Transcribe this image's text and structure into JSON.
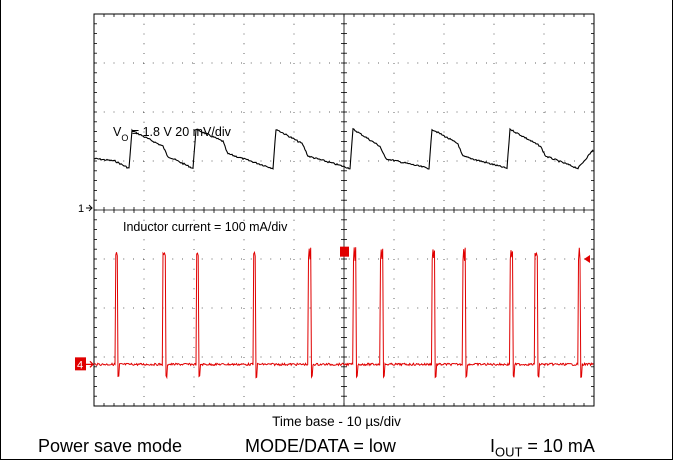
{
  "chart_data": {
    "type": "line",
    "time_per_division": "Time base - 10 µs/div",
    "grid": true,
    "grid_divisions": {
      "x": 10,
      "y": 8
    },
    "x_unit": "µs",
    "xlim": [
      0,
      100
    ],
    "channel_markers": [
      "1",
      "4"
    ],
    "series": [
      {
        "name": "VO",
        "label": "VO = 1.8 V 20 mV/div",
        "label_parts": {
          "prefix": "V",
          "subscript": "O",
          "rest": " = 1.8 V 20 mV/div"
        },
        "color": "#000000",
        "scale": "20 mV/div",
        "unit": "div",
        "ylim": [
          -4,
          4
        ],
        "shape": "sawtooth",
        "x": [
          0,
          4.2,
          7.0,
          7.6,
          13.8,
          14.7,
          19.8,
          20.4,
          25.8,
          26.7,
          35.8,
          36.4,
          41.7,
          42.8,
          51.2,
          51.8,
          57.2,
          58.3,
          67.0,
          67.6,
          72.8,
          73.7,
          82.6,
          83.2,
          89.3,
          90.3,
          96.8,
          100
        ],
        "values": [
          1.05,
          1.0,
          0.85,
          1.62,
          1.3,
          1.1,
          0.85,
          1.65,
          1.4,
          1.15,
          0.85,
          1.65,
          1.35,
          1.1,
          0.85,
          1.65,
          1.3,
          1.05,
          0.85,
          1.65,
          1.35,
          1.1,
          0.85,
          1.65,
          1.3,
          1.1,
          0.85,
          1.25
        ]
      },
      {
        "name": "Inductor current",
        "label": "Inductor current = 100 mA/div",
        "color": "#e00000",
        "scale": "100 mA/div",
        "unit": "div",
        "ylim": [
          -4,
          4
        ],
        "shape": "pulse train",
        "pulse_times": [
          4.2,
          13.8,
          20.4,
          31.8,
          42.8,
          51.8,
          57.2,
          67.6,
          73.7,
          83.2,
          88.2,
          96.8
        ],
        "pulse_peak": -0.9,
        "baseline": -3.15
      }
    ]
  },
  "footer": {
    "mode": "Power save mode",
    "data": "MODE/DATA = low",
    "iout_prefix": "I",
    "iout_sub": "OUT",
    "iout_rest": " = 10 mA"
  }
}
